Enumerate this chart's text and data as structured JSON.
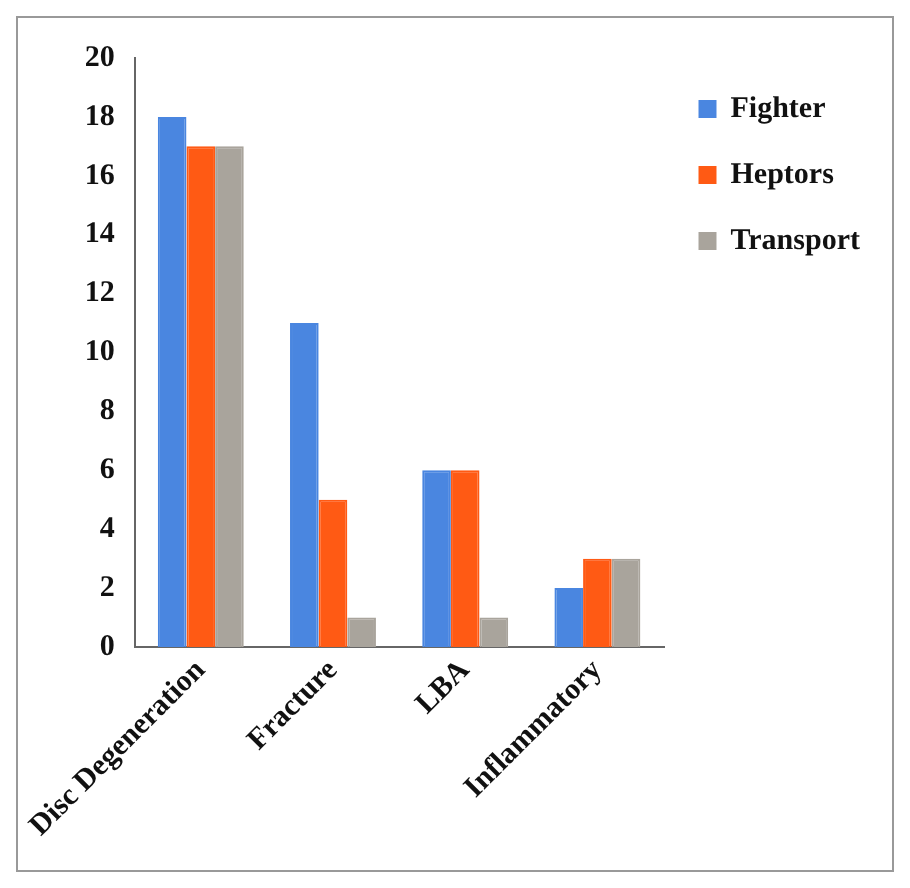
{
  "chart_data": {
    "type": "bar",
    "categories": [
      "Disc Degeneration",
      "Fracture",
      "LBA",
      "Inflammatory"
    ],
    "series": [
      {
        "name": "Fighter",
        "color": "#4a86e0",
        "values": [
          18,
          11,
          6,
          2
        ]
      },
      {
        "name": "Heptors",
        "color": "#ff5a14",
        "values": [
          17,
          5,
          6,
          3
        ]
      },
      {
        "name": "Transport",
        "color": "#a9a49c",
        "values": [
          17,
          1,
          1,
          3
        ]
      }
    ],
    "ylim": [
      0,
      20
    ],
    "yticks": [
      0,
      2,
      4,
      6,
      8,
      10,
      12,
      14,
      16,
      18,
      20
    ],
    "grid": false,
    "legend": "top right"
  }
}
